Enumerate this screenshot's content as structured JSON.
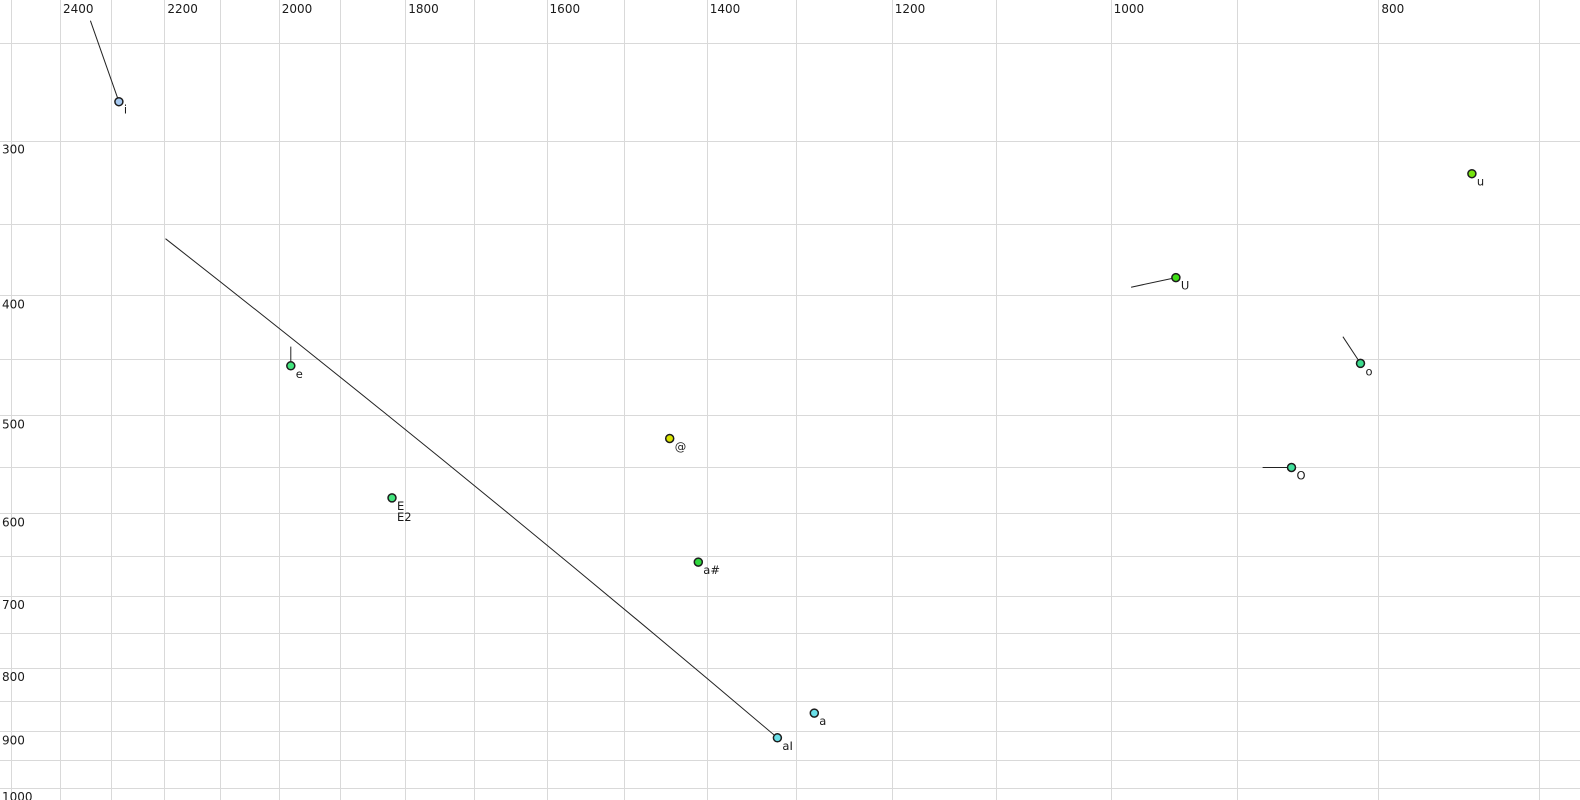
{
  "chart_data": {
    "type": "scatter",
    "title": "",
    "xlabel": "",
    "ylabel": "",
    "x_axis": {
      "unit": "Hz",
      "scale": "log",
      "reversed": true,
      "major_ticks": [
        2400,
        2200,
        2000,
        1800,
        1600,
        1400,
        1200,
        1000,
        800
      ],
      "minor_gridlines": [
        2500,
        2300,
        2100,
        1900,
        1700,
        1500,
        1300,
        1100,
        900,
        700
      ],
      "tick_labels": [
        "2400",
        "2200",
        "2000",
        "1800",
        "1600",
        "1400",
        "1200",
        "1000",
        "800"
      ]
    },
    "y_axis": {
      "unit": "Hz",
      "scale": "log",
      "reversed": false,
      "major_ticks": [
        300,
        400,
        500,
        600,
        700,
        800,
        900,
        1000
      ],
      "minor_gridlines": [
        250,
        350,
        450,
        550,
        650,
        750,
        850,
        950
      ],
      "tick_labels": [
        "300",
        "400",
        "500",
        "600",
        "700",
        "800",
        "900",
        "1000"
      ]
    },
    "grid_color": "#d9d9d9",
    "tick_label_color": "#1a1a1a",
    "point_border_color": "#1c1c1c",
    "tail_line_color": "#222222",
    "points": [
      {
        "label": "i",
        "f2": 2285,
        "f1": 279,
        "color": "#a6c8ef",
        "tail": {
          "f2": 2340,
          "f1": 240
        }
      },
      {
        "label": "u",
        "f2": 740,
        "f1": 319,
        "color": "#76e40e",
        "tail": null
      },
      {
        "label": "U",
        "f2": 947,
        "f1": 387,
        "color": "#3fdf16",
        "tail": {
          "f2": 983,
          "f1": 394
        }
      },
      {
        "label": "e",
        "f2": 1980,
        "f1": 456,
        "color": "#42e47d",
        "tail": {
          "f2": 1980,
          "f1": 440
        }
      },
      {
        "label": "o",
        "f2": 812,
        "f1": 454,
        "color": "#3cdc8e",
        "tail": {
          "f2": 824,
          "f1": 432
        }
      },
      {
        "label": "@",
        "f2": 1444,
        "f1": 522,
        "color": "#d9e400",
        "tail": null
      },
      {
        "label": "O",
        "f2": 860,
        "f1": 551,
        "color": "#40e09c",
        "tail": {
          "f2": 881,
          "f1": 551
        }
      },
      {
        "label": "E",
        "f2": 1820,
        "f1": 583,
        "color": "#42e47d",
        "tail": null,
        "label2": "E2"
      },
      {
        "label": "a#",
        "f2": 1410,
        "f1": 657,
        "color": "#2fd73d",
        "tail": null
      },
      {
        "label": "a",
        "f2": 1280,
        "f1": 870,
        "color": "#69dfe8",
        "tail": null
      },
      {
        "label": "aI",
        "f2": 1320,
        "f1": 911,
        "color": "#69dfe8",
        "tail": {
          "f2": 2198,
          "f1": 360
        },
        "tail_curved": true
      }
    ]
  }
}
